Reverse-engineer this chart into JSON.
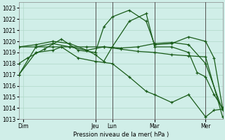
{
  "background_color": "#d0eee8",
  "grid_color": "#b0d8c8",
  "line_color": "#1a5c1a",
  "vline_color": "#555555",
  "xlabel_text": "Pression niveau de la mer( hPa )",
  "ylim": [
    1013,
    1023.5
  ],
  "yticks": [
    1013,
    1014,
    1015,
    1016,
    1017,
    1018,
    1019,
    1020,
    1021,
    1022,
    1023
  ],
  "xlim": [
    0,
    24
  ],
  "day_labels": [
    "Dim",
    "Jeu",
    "Lun",
    "Mar",
    "Mer"
  ],
  "day_positions": [
    0.5,
    9,
    11,
    16,
    22
  ],
  "vlines_x": [
    9,
    11,
    16,
    22
  ],
  "series": [
    {
      "x": [
        0,
        2,
        4,
        6,
        8,
        10,
        12,
        14,
        16,
        18,
        20,
        22,
        24
      ],
      "y": [
        1019.5,
        1019.5,
        1019.5,
        1019.5,
        1019.5,
        1019.5,
        1019.3,
        1019.1,
        1019.0,
        1018.8,
        1018.7,
        1018.6,
        1013.2
      ]
    },
    {
      "x": [
        0,
        2,
        4,
        6,
        8,
        10,
        12,
        14,
        16,
        18,
        20,
        22,
        24
      ],
      "y": [
        1019.5,
        1019.7,
        1020.0,
        1019.8,
        1019.2,
        1019.5,
        1019.4,
        1019.5,
        1019.8,
        1019.9,
        1019.7,
        1018.0,
        1013.8
      ]
    },
    {
      "x": [
        0,
        1,
        3,
        5,
        7,
        9,
        10,
        11,
        13,
        15,
        16,
        18,
        20,
        22,
        23,
        24
      ],
      "y": [
        1018.0,
        1018.5,
        1019.3,
        1020.2,
        1019.2,
        1019.0,
        1021.3,
        1022.2,
        1022.8,
        1021.8,
        1019.7,
        1019.8,
        1020.4,
        1020.0,
        1018.5,
        1014.0
      ]
    },
    {
      "x": [
        0,
        2,
        4,
        6,
        8,
        9,
        10,
        11,
        13,
        15,
        16,
        18,
        20,
        21,
        22,
        23,
        24
      ],
      "y": [
        1017.0,
        1019.5,
        1019.8,
        1019.5,
        1019.2,
        1018.8,
        1018.2,
        1019.5,
        1021.8,
        1022.5,
        1019.5,
        1019.5,
        1019.0,
        1017.2,
        1016.8,
        1015.2,
        1014.0
      ]
    },
    {
      "x": [
        0,
        2,
        4,
        5,
        7,
        9,
        11,
        13,
        15,
        16,
        18,
        20,
        22,
        23,
        24
      ],
      "y": [
        1017.0,
        1019.0,
        1019.2,
        1019.5,
        1018.5,
        1018.2,
        1018.0,
        1016.8,
        1015.5,
        1015.2,
        1014.5,
        1015.2,
        1013.2,
        1013.8,
        1013.9
      ]
    }
  ],
  "figsize": [
    3.2,
    2.0
  ],
  "dpi": 100
}
